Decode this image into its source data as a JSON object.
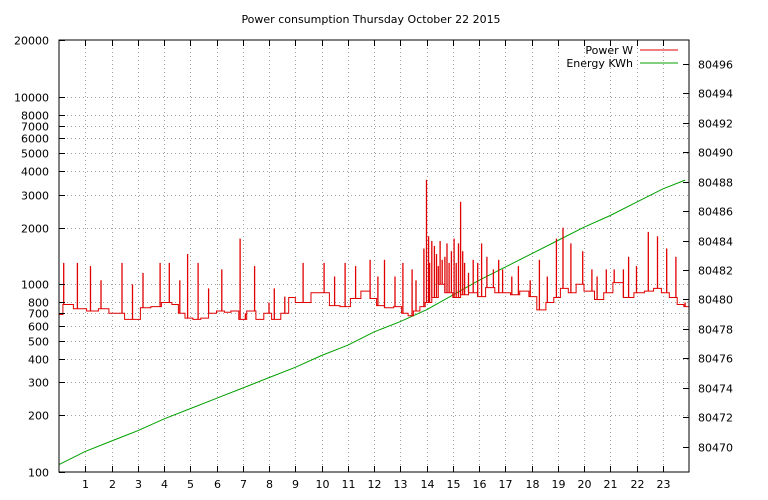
{
  "chart_data": {
    "type": "line",
    "title": "Power consumption Thursday October 22 2015",
    "x_ticks": [
      "1",
      "2",
      "3",
      "4",
      "5",
      "6",
      "7",
      "8",
      "9",
      "10",
      "11",
      "12",
      "13",
      "14",
      "15",
      "16",
      "17",
      "18",
      "19",
      "20",
      "21",
      "22",
      "23"
    ],
    "xlim": [
      0,
      24
    ],
    "y_left": {
      "scale": "log",
      "range": [
        100,
        20000
      ],
      "tick_values": [
        100,
        200,
        300,
        400,
        500,
        600,
        700,
        800,
        1000,
        2000,
        3000,
        4000,
        5000,
        6000,
        7000,
        8000,
        10000,
        20000
      ],
      "tick_labels": [
        "100",
        "200",
        "300",
        "400",
        "500",
        "600",
        "700",
        "800",
        "1000",
        "2000",
        "3000",
        "4000",
        "5000",
        "6000",
        "7000",
        "8000",
        "10000",
        "20000"
      ]
    },
    "y_right": {
      "scale": "linear",
      "range": [
        80468.3,
        80497.6
      ],
      "tick_values": [
        80470,
        80472,
        80474,
        80476,
        80478,
        80480,
        80482,
        80484,
        80486,
        80488,
        80490,
        80492,
        80494,
        80496
      ],
      "tick_labels": [
        "80470",
        "80472",
        "80474",
        "80476",
        "80478",
        "80480",
        "80482",
        "80484",
        "80486",
        "80488",
        "80490",
        "80492",
        "80494",
        "80496"
      ]
    },
    "grid": true,
    "legend_position": "top-right",
    "series": [
      {
        "name": "Power W",
        "axis": "left",
        "color": "#e00000",
        "step": "post",
        "x": [
          0,
          0.15,
          0.3,
          0.55,
          0.75,
          1.05,
          1.5,
          1.9,
          2.2,
          2.5,
          2.9,
          3.1,
          3.5,
          3.9,
          4.3,
          4.55,
          4.8,
          5.1,
          5.4,
          5.7,
          6.0,
          6.3,
          6.55,
          6.85,
          7.15,
          7.5,
          7.8,
          8.1,
          8.45,
          8.75,
          9.0,
          9.3,
          9.6,
          9.9,
          10.3,
          10.7,
          11.1,
          11.5,
          11.85,
          12.1,
          12.4,
          12.75,
          13.05,
          13.3,
          13.5,
          13.75,
          13.95,
          14.2,
          14.45,
          14.7,
          15.0,
          15.3,
          15.6,
          15.95,
          16.25,
          16.6,
          16.9,
          17.2,
          17.55,
          17.9,
          18.2,
          18.55,
          18.85,
          19.1,
          19.4,
          19.7,
          20.0,
          20.4,
          20.75,
          21.1,
          21.5,
          21.9,
          22.3,
          22.65,
          22.95,
          23.25,
          23.55,
          23.8
        ],
        "values": [
          690,
          780,
          780,
          740,
          740,
          720,
          740,
          700,
          700,
          650,
          650,
          750,
          760,
          800,
          780,
          700,
          660,
          650,
          660,
          700,
          720,
          710,
          720,
          650,
          720,
          650,
          700,
          650,
          700,
          850,
          800,
          800,
          900,
          900,
          770,
          760,
          840,
          920,
          840,
          770,
          750,
          760,
          700,
          680,
          720,
          760,
          800,
          850,
          1000,
          900,
          850,
          880,
          900,
          860,
          960,
          900,
          900,
          880,
          920,
          860,
          730,
          800,
          850,
          950,
          900,
          1000,
          920,
          830,
          900,
          1020,
          850,
          900,
          920,
          950,
          900,
          850,
          780,
          760
        ],
        "spikes": [
          [
            0.18,
            1300
          ],
          [
            0.7,
            1300
          ],
          [
            1.2,
            1250
          ],
          [
            1.6,
            1050
          ],
          [
            2.4,
            1300
          ],
          [
            2.8,
            1000
          ],
          [
            3.2,
            1150
          ],
          [
            3.85,
            1300
          ],
          [
            4.2,
            1300
          ],
          [
            4.6,
            1050
          ],
          [
            4.9,
            1450
          ],
          [
            5.3,
            1300
          ],
          [
            5.7,
            950
          ],
          [
            6.2,
            1200
          ],
          [
            6.9,
            1750
          ],
          [
            7.1,
            700
          ],
          [
            7.45,
            1250
          ],
          [
            8.0,
            800
          ],
          [
            8.2,
            950
          ],
          [
            8.6,
            860
          ],
          [
            9.3,
            1300
          ],
          [
            9.7,
            900
          ],
          [
            10.1,
            1300
          ],
          [
            10.5,
            1100
          ],
          [
            10.9,
            1300
          ],
          [
            11.3,
            1250
          ],
          [
            11.85,
            1350
          ],
          [
            12.15,
            1100
          ],
          [
            12.4,
            1350
          ],
          [
            12.8,
            1100
          ],
          [
            13.1,
            1300
          ],
          [
            13.45,
            1200
          ],
          [
            13.6,
            1050
          ],
          [
            13.9,
            1550
          ],
          [
            14.0,
            3600
          ],
          [
            14.08,
            1800
          ],
          [
            14.12,
            1300
          ],
          [
            14.2,
            1700
          ],
          [
            14.3,
            1600
          ],
          [
            14.38,
            1450
          ],
          [
            14.45,
            1250
          ],
          [
            14.52,
            1700
          ],
          [
            14.6,
            1350
          ],
          [
            14.7,
            1400
          ],
          [
            14.78,
            1650
          ],
          [
            14.86,
            1300
          ],
          [
            14.95,
            1500
          ],
          [
            15.05,
            1750
          ],
          [
            15.13,
            1300
          ],
          [
            15.22,
            1650
          ],
          [
            15.3,
            2750
          ],
          [
            15.38,
            1500
          ],
          [
            15.45,
            1300
          ],
          [
            15.6,
            1150
          ],
          [
            15.78,
            1350
          ],
          [
            15.95,
            1300
          ],
          [
            16.1,
            1650
          ],
          [
            16.3,
            1400
          ],
          [
            16.55,
            1200
          ],
          [
            16.75,
            1350
          ],
          [
            16.9,
            1200
          ],
          [
            17.25,
            1100
          ],
          [
            17.5,
            1250
          ],
          [
            17.95,
            1050
          ],
          [
            18.3,
            1350
          ],
          [
            18.6,
            1100
          ],
          [
            18.95,
            1750
          ],
          [
            19.2,
            2000
          ],
          [
            19.5,
            1650
          ],
          [
            19.95,
            1500
          ],
          [
            20.3,
            1200
          ],
          [
            20.5,
            1100
          ],
          [
            20.85,
            1200
          ],
          [
            21.15,
            1200
          ],
          [
            21.5,
            1200
          ],
          [
            21.7,
            1400
          ],
          [
            22.0,
            1250
          ],
          [
            22.45,
            1900
          ],
          [
            22.8,
            1800
          ],
          [
            23.15,
            1550
          ],
          [
            23.5,
            1400
          ],
          [
            23.85,
            800
          ]
        ]
      },
      {
        "name": "Energy KWh",
        "axis": "right",
        "color": "#00a000",
        "x": [
          0,
          1,
          2,
          3,
          4,
          5,
          6,
          7,
          8,
          9,
          10,
          11,
          12,
          13,
          13.5,
          14,
          14.5,
          15,
          15.5,
          16,
          17,
          18,
          19,
          20,
          21,
          22,
          23,
          23.85
        ],
        "values": [
          80468.8,
          80469.7,
          80470.4,
          80471.1,
          80471.9,
          80472.6,
          80473.3,
          80474.0,
          80474.7,
          80475.4,
          80476.2,
          80476.9,
          80477.8,
          80478.5,
          80478.9,
          80479.3,
          80479.8,
          80480.3,
          80480.8,
          80481.3,
          80482.2,
          80483.1,
          80484.0,
          80484.9,
          80485.7,
          80486.6,
          80487.5,
          80488.1
        ]
      }
    ]
  }
}
